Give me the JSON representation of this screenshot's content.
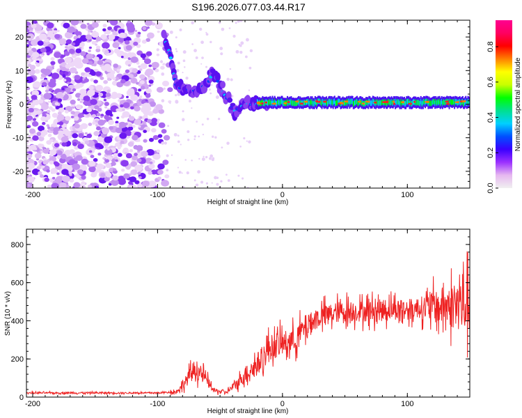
{
  "title": "S196.2026.077.03.44.R17",
  "chart_data": [
    {
      "type": "heatmap",
      "name": "spectrogram",
      "xlabel": "Height of straight line (km)",
      "ylabel": "Frequency (Hz)",
      "xlim": [
        -205,
        150
      ],
      "ylim": [
        -25,
        25
      ],
      "xticks": [
        -200,
        -100,
        0,
        100
      ],
      "xtick_labels": [
        "-200",
        "-100",
        "0",
        "100"
      ],
      "yticks": [
        -20,
        -10,
        0,
        10,
        20
      ],
      "ytick_labels": [
        "-20",
        "-10",
        "0",
        "10",
        "20"
      ],
      "colorbar": {
        "label": "Normalized spectral amplitude",
        "range": [
          0,
          0.95
        ],
        "ticks": [
          0.0,
          0.2,
          0.4,
          0.6,
          0.8
        ],
        "tick_labels": [
          "0.0",
          "0.2",
          "0.4",
          "0.6",
          "0.8"
        ],
        "colors": [
          "#f0f0f0",
          "#e6b8f0",
          "#9b30ff",
          "#3a00ff",
          "#0050ff",
          "#00d0ff",
          "#00e090",
          "#00ff00",
          "#c8ff00",
          "#ffff00",
          "#ff8000",
          "#ff0000",
          "#ff0060",
          "#ff0090"
        ]
      },
      "features": {
        "noise_region_x": [
          -205,
          -90
        ],
        "transition_x": [
          -90,
          -20
        ],
        "tone_region_x": [
          -20,
          150
        ],
        "tone_frequency_hz": 0.5,
        "transition_track": [
          [
            -95,
            20
          ],
          [
            -90,
            15
          ],
          [
            -85,
            5
          ],
          [
            -70,
            4
          ],
          [
            -60,
            6
          ],
          [
            -55,
            10
          ],
          [
            -50,
            5
          ],
          [
            -45,
            2
          ],
          [
            -38,
            -2
          ],
          [
            -30,
            0
          ],
          [
            -20,
            0
          ],
          [
            -10,
            0
          ]
        ]
      }
    },
    {
      "type": "line",
      "name": "snr",
      "xlabel": "Height of straight line (km)",
      "ylabel": "SNR (10 * v/v)",
      "xlim": [
        -205,
        150
      ],
      "ylim": [
        0,
        880
      ],
      "xticks": [
        -200,
        -100,
        0,
        100
      ],
      "xtick_labels": [
        "-200",
        "-100",
        "0",
        "100"
      ],
      "yticks": [
        0,
        200,
        400,
        600,
        800
      ],
      "ytick_labels": [
        "0",
        "200",
        "400",
        "600",
        "800"
      ],
      "color": "#ee2222",
      "trend": {
        "x": [
          -205,
          -100,
          -85,
          -80,
          -70,
          -62,
          -55,
          -45,
          -38,
          -30,
          -20,
          -10,
          0,
          10,
          20,
          30,
          40,
          50,
          60,
          70,
          80,
          90,
          100,
          110,
          120,
          130,
          140,
          150
        ],
        "y": [
          22,
          22,
          28,
          60,
          150,
          100,
          35,
          25,
          60,
          120,
          170,
          260,
          280,
          300,
          380,
          420,
          440,
          450,
          450,
          450,
          460,
          460,
          460,
          470,
          470,
          480,
          480,
          480
        ]
      }
    }
  ]
}
